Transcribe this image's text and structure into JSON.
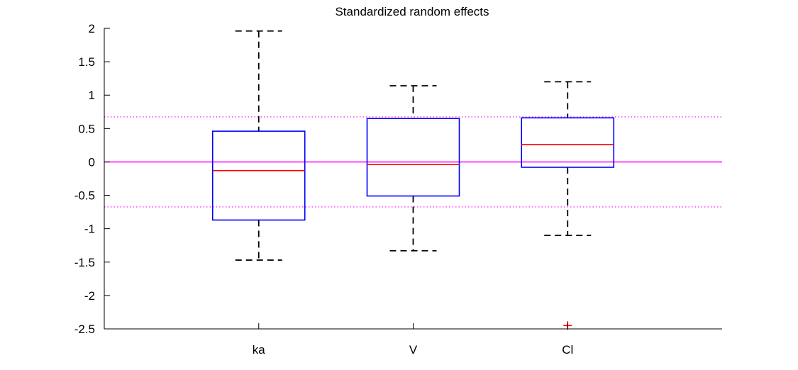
{
  "chart_data": {
    "type": "box",
    "title": "Standardized random effects",
    "xlabel": "",
    "ylabel": "",
    "categories": [
      "ka",
      "V",
      "Cl"
    ],
    "ylim": [
      -2.5,
      2
    ],
    "yticks": [
      "2",
      "1.5",
      "1",
      "0.5",
      "0",
      "-0.5",
      "-1",
      "-1.5",
      "-2",
      "-2.5"
    ],
    "ytick_values": [
      2,
      1.5,
      1,
      0.5,
      0,
      -0.5,
      -1,
      -1.5,
      -2,
      -2.5
    ],
    "boxes": [
      {
        "name": "ka",
        "whisker_low": -1.47,
        "q1": -0.87,
        "median": -0.13,
        "q3": 0.46,
        "whisker_high": 1.96,
        "outliers": []
      },
      {
        "name": "V",
        "whisker_low": -1.33,
        "q1": -0.51,
        "median": -0.04,
        "q3": 0.65,
        "whisker_high": 1.14,
        "outliers": []
      },
      {
        "name": "Cl",
        "whisker_low": -1.1,
        "q1": -0.08,
        "median": 0.26,
        "q3": 0.66,
        "whisker_high": 1.2,
        "outliers": [
          -2.45
        ]
      }
    ],
    "reference_lines": [
      {
        "y": 0,
        "style": "solid"
      },
      {
        "y": 0.674,
        "style": "dotted"
      },
      {
        "y": -0.674,
        "style": "dotted"
      }
    ],
    "grid": false,
    "colors": {
      "box": "#0000ff",
      "median": "#ff0000",
      "whisker": "#000000",
      "outlier": "#ff0000",
      "reference": "#ff00ff",
      "axis": "#000000"
    }
  }
}
